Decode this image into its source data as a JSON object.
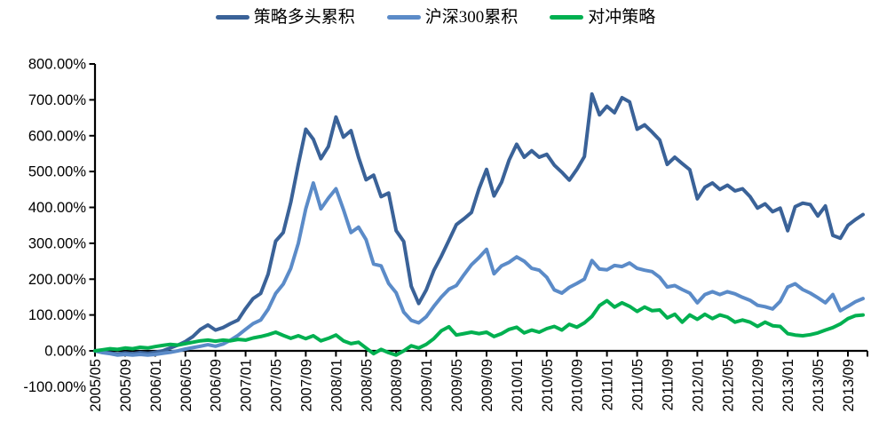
{
  "chart_data": {
    "type": "line",
    "title": "",
    "grid": false,
    "legend_position": "top",
    "ylim": [
      -100,
      800
    ],
    "y_tick_step": 100,
    "y_unit": "percent",
    "x": [
      "2005/05",
      "2005/06",
      "2005/07",
      "2005/08",
      "2005/09",
      "2005/10",
      "2005/11",
      "2005/12",
      "2006/01",
      "2006/02",
      "2006/03",
      "2006/04",
      "2006/05",
      "2006/06",
      "2006/07",
      "2006/08",
      "2006/09",
      "2006/10",
      "2006/11",
      "2006/12",
      "2007/01",
      "2007/02",
      "2007/03",
      "2007/04",
      "2007/05",
      "2007/06",
      "2007/07",
      "2007/08",
      "2007/09",
      "2007/10",
      "2007/11",
      "2007/12",
      "2008/01",
      "2008/02",
      "2008/03",
      "2008/04",
      "2008/05",
      "2008/06",
      "2008/07",
      "2008/08",
      "2008/09",
      "2008/10",
      "2008/11",
      "2008/12",
      "2009/01",
      "2009/02",
      "2009/03",
      "2009/04",
      "2009/05",
      "2009/06",
      "2009/07",
      "2009/08",
      "2009/09",
      "2009/10",
      "2009/11",
      "2009/12",
      "2010/01",
      "2010/02",
      "2010/03",
      "2010/04",
      "2010/05",
      "2010/06",
      "2010/07",
      "2010/08",
      "2010/09",
      "2010/10",
      "2010/11",
      "2010/12",
      "2011/01",
      "2011/02",
      "2011/03",
      "2011/04",
      "2011/05",
      "2011/06",
      "2011/07",
      "2011/08",
      "2011/09",
      "2011/10",
      "2011/11",
      "2011/12",
      "2012/01",
      "2012/02",
      "2012/03",
      "2012/04",
      "2012/05",
      "2012/06",
      "2012/07",
      "2012/08",
      "2012/09",
      "2012/10",
      "2012/11",
      "2012/12",
      "2013/01",
      "2013/02",
      "2013/03",
      "2013/04",
      "2013/05",
      "2013/06",
      "2013/07",
      "2013/08",
      "2013/09",
      "2013/10",
      "2013/11"
    ],
    "series": [
      {
        "id": "strategy-long",
        "name": "策略多头累积",
        "color": "#3A6298",
        "values": [
          0,
          -4,
          -6,
          -9,
          -6,
          -8,
          -5,
          -7,
          -4,
          0,
          8,
          16,
          26,
          40,
          60,
          72,
          58,
          65,
          76,
          86,
          118,
          146,
          160,
          214,
          306,
          330,
          414,
          520,
          618,
          590,
          536,
          570,
          652,
          596,
          614,
          540,
          477,
          490,
          430,
          440,
          335,
          305,
          180,
          132,
          170,
          224,
          264,
          308,
          352,
          368,
          386,
          452,
          506,
          432,
          470,
          532,
          576,
          540,
          558,
          540,
          548,
          518,
          498,
          476,
          506,
          542,
          716,
          658,
          682,
          664,
          706,
          694,
          618,
          630,
          610,
          588,
          520,
          540,
          522,
          505,
          424,
          456,
          468,
          450,
          462,
          446,
          452,
          430,
          398,
          410,
          388,
          398,
          335,
          402,
          412,
          408,
          376,
          404,
          322,
          314,
          350,
          366,
          380
        ]
      },
      {
        "id": "csi300",
        "name": "沪深300累积",
        "color": "#5B8BC8",
        "values": [
          0,
          -5,
          -8,
          -12,
          -10,
          -12,
          -10,
          -12,
          -10,
          -7,
          -4,
          0,
          5,
          9,
          13,
          17,
          13,
          19,
          30,
          43,
          60,
          76,
          86,
          116,
          160,
          186,
          230,
          300,
          396,
          468,
          396,
          426,
          452,
          394,
          330,
          345,
          310,
          242,
          237,
          188,
          162,
          108,
          85,
          78,
          95,
          124,
          150,
          172,
          182,
          212,
          240,
          260,
          283,
          215,
          237,
          247,
          262,
          250,
          230,
          225,
          205,
          170,
          161,
          177,
          188,
          200,
          252,
          228,
          226,
          238,
          235,
          245,
          230,
          225,
          221,
          205,
          178,
          182,
          171,
          161,
          134,
          157,
          165,
          157,
          165,
          159,
          149,
          141,
          127,
          123,
          117,
          138,
          178,
          187,
          171,
          161,
          148,
          134,
          157,
          112,
          124,
          137,
          146
        ]
      },
      {
        "id": "hedge",
        "name": "对冲策略",
        "color": "#00B050",
        "values": [
          0,
          3,
          6,
          4,
          8,
          6,
          10,
          8,
          12,
          15,
          18,
          16,
          20,
          24,
          28,
          30,
          27,
          30,
          28,
          32,
          30,
          36,
          40,
          45,
          52,
          43,
          35,
          42,
          34,
          42,
          28,
          35,
          44,
          28,
          20,
          24,
          8,
          -8,
          4,
          -5,
          -12,
          0,
          14,
          8,
          18,
          34,
          56,
          67,
          44,
          48,
          52,
          48,
          52,
          40,
          48,
          60,
          66,
          50,
          58,
          52,
          62,
          68,
          58,
          74,
          66,
          78,
          96,
          126,
          140,
          122,
          134,
          124,
          110,
          122,
          112,
          114,
          92,
          102,
          80,
          100,
          88,
          102,
          90,
          100,
          94,
          80,
          86,
          80,
          68,
          80,
          70,
          68,
          48,
          44,
          42,
          45,
          50,
          58,
          65,
          75,
          90,
          98,
          100
        ]
      }
    ]
  },
  "y_axis": {
    "tick_labels": [
      "800.00%",
      "700.00%",
      "600.00%",
      "500.00%",
      "400.00%",
      "300.00%",
      "200.00%",
      "100.00%",
      "0.00%",
      "-100.00%"
    ]
  },
  "x_axis": {
    "tick_labels": [
      "2005/05",
      "2005/09",
      "2006/01",
      "2006/05",
      "2006/09",
      "2007/01",
      "2007/05",
      "2007/09",
      "2008/01",
      "2008/05",
      "2008/09",
      "2009/01",
      "2009/05",
      "2009/09",
      "2010/01",
      "2010/05",
      "2010/09",
      "2011/01",
      "2011/05",
      "2011/09",
      "2012/01",
      "2012/05",
      "2012/09",
      "2013/01",
      "2013/05",
      "2013/09"
    ]
  }
}
